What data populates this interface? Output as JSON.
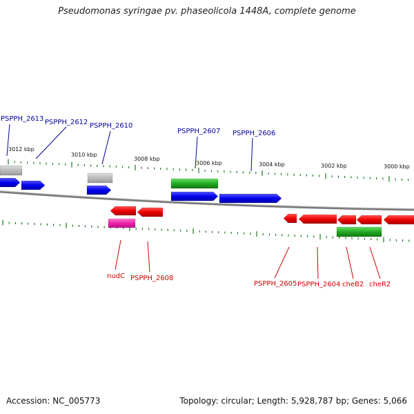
{
  "title": "Pseudomonas syringae pv. phaseolicola 1448A, complete genome",
  "footer": {
    "accession": "Accession: NC_005773",
    "summary": "Topology: circular; Length: 5,928,787 bp; Genes: 5,066"
  },
  "colors": {
    "forward_cds": "#0000ee",
    "reverse_cds": "#ee0000",
    "forward_label": "#000099",
    "reverse_label": "#cc0000",
    "rna": "#22aa22",
    "pseudo": "#aaaaaa",
    "special": "#ee22aa",
    "backbone": "#7a7a7a",
    "ticks": "#1a7a1a"
  },
  "tick_labels": [
    "3012 kbp",
    "3010 kbp",
    "3008 kbp",
    "3006 kbp",
    "3004 kbp",
    "3002 kbp",
    "3000 kbp"
  ],
  "forward_labels": [
    "PSPPH_2613",
    "PSPPH_2612",
    "PSPPH_2610",
    "PSPPH_2607",
    "PSPPH_2606"
  ],
  "reverse_labels": [
    "nudC",
    "PSPPH_2608",
    "PSPPH_2605",
    "PSPPH_2604",
    "cheB2",
    "cheR2"
  ]
}
